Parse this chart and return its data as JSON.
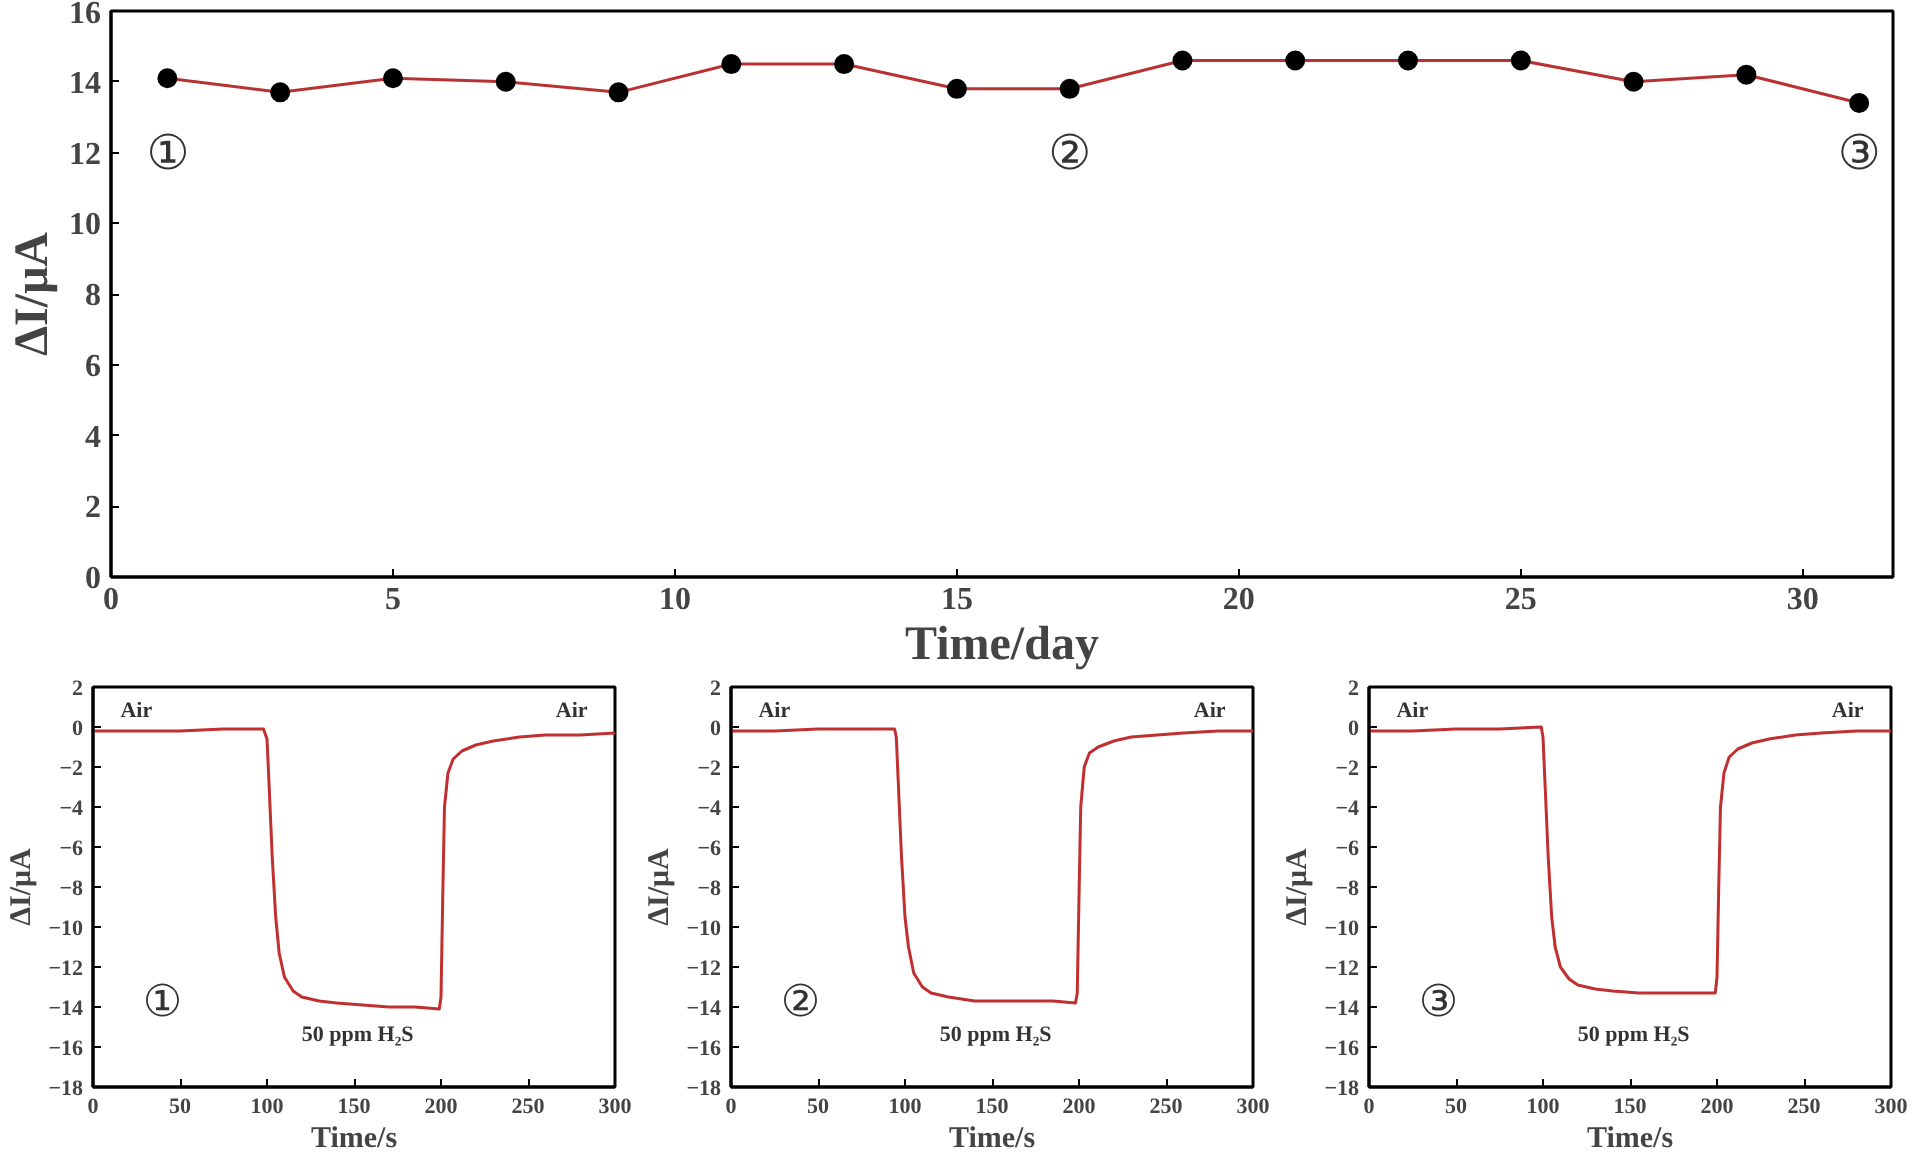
{
  "chart_data": [
    {
      "type": "line",
      "xlabel": "Time/day",
      "ylabel": "ΔI/μA",
      "x": [
        1,
        3,
        5,
        7,
        9,
        11,
        13,
        15,
        17,
        19,
        21,
        23,
        25,
        27,
        29,
        31
      ],
      "series": [
        {
          "color": "#b83232",
          "colors": [
            "#000000",
            "#000000",
            "#000000",
            "#000000",
            "#000000",
            "#000000",
            "#000000",
            "#000000",
            "#000000",
            "#000000",
            "#000000",
            "#000000",
            "#000000",
            "#000000",
            "#000000",
            "#000000"
          ],
          "values": [
            14.1,
            13.7,
            14.1,
            14.0,
            13.7,
            14.5,
            14.5,
            13.8,
            13.8,
            14.6,
            14.6,
            14.6,
            14.6,
            14.0,
            14.2,
            13.4
          ]
        }
      ],
      "marker": "circle",
      "grid": false,
      "xlim": [
        0,
        31.6
      ],
      "xticks": [
        0,
        5,
        10,
        15,
        20,
        25,
        30
      ],
      "ylim": [
        0,
        16
      ],
      "yticks": [
        0,
        2,
        4,
        6,
        8,
        10,
        12,
        14,
        16
      ],
      "annotations": [
        "①",
        "②",
        "③"
      ]
    },
    {
      "type": "line",
      "xlabel": "Time/s",
      "ylabel": "ΔI/μA",
      "x": [
        0,
        25,
        50,
        75,
        98,
        100,
        101,
        103,
        105,
        107,
        110,
        115,
        120,
        130,
        140,
        155,
        170,
        185,
        199,
        200,
        201,
        202,
        204,
        207,
        212,
        220,
        230,
        245,
        260,
        280,
        300
      ],
      "series": [
        {
          "color": "#c03030",
          "values": [
            -0.2,
            -0.2,
            -0.2,
            -0.1,
            -0.1,
            -0.6,
            -2.5,
            -6.5,
            -9.5,
            -11.3,
            -12.5,
            -13.2,
            -13.5,
            -13.7,
            -13.8,
            -13.9,
            -14.0,
            -14.0,
            -14.1,
            -13.5,
            -8.5,
            -4.0,
            -2.3,
            -1.6,
            -1.2,
            -0.9,
            -0.7,
            -0.5,
            -0.4,
            -0.4,
            -0.3
          ]
        }
      ],
      "marker": "none",
      "grid": false,
      "xlim": [
        0,
        300
      ],
      "xticks": [
        0,
        50,
        100,
        150,
        200,
        250,
        300
      ],
      "ylim": [
        -18,
        2
      ],
      "yticks": [
        2,
        0,
        -2,
        -4,
        -6,
        -8,
        -10,
        -12,
        -14,
        -16,
        -18
      ],
      "annotations": [
        "Air",
        "Air",
        "50 ppm H₂S",
        "①"
      ]
    },
    {
      "type": "line",
      "xlabel": "Time/s",
      "ylabel": "ΔI/μA",
      "x": [
        0,
        25,
        50,
        75,
        94,
        95,
        96,
        98,
        100,
        102,
        105,
        110,
        115,
        125,
        140,
        155,
        170,
        185,
        198,
        199,
        200,
        201,
        203,
        206,
        211,
        220,
        230,
        245,
        260,
        280,
        300
      ],
      "series": [
        {
          "color": "#c03030",
          "values": [
            -0.2,
            -0.2,
            -0.1,
            -0.1,
            -0.1,
            -0.5,
            -2.5,
            -6.5,
            -9.5,
            -11.0,
            -12.3,
            -13.0,
            -13.3,
            -13.5,
            -13.7,
            -13.7,
            -13.7,
            -13.7,
            -13.8,
            -13.3,
            -8.5,
            -4.0,
            -2.0,
            -1.3,
            -1.0,
            -0.7,
            -0.5,
            -0.4,
            -0.3,
            -0.2,
            -0.2
          ]
        }
      ],
      "marker": "none",
      "grid": false,
      "xlim": [
        0,
        300
      ],
      "xticks": [
        0,
        50,
        100,
        150,
        200,
        250,
        300
      ],
      "ylim": [
        -18,
        2
      ],
      "yticks": [
        2,
        0,
        -2,
        -4,
        -6,
        -8,
        -10,
        -12,
        -14,
        -16,
        -18
      ],
      "annotations": [
        "Air",
        "Air",
        "50 ppm H₂S",
        "②"
      ]
    },
    {
      "type": "line",
      "xlabel": "Time/s",
      "ylabel": "ΔI/μA",
      "x": [
        0,
        25,
        50,
        75,
        99,
        100,
        101,
        103,
        105,
        107,
        110,
        115,
        120,
        130,
        140,
        155,
        170,
        185,
        199,
        200,
        201,
        202,
        204,
        207,
        212,
        220,
        230,
        245,
        260,
        280,
        300
      ],
      "series": [
        {
          "color": "#c03030",
          "values": [
            -0.2,
            -0.2,
            -0.1,
            -0.1,
            0.0,
            -0.5,
            -2.5,
            -6.5,
            -9.5,
            -11.0,
            -12.0,
            -12.6,
            -12.9,
            -13.1,
            -13.2,
            -13.3,
            -13.3,
            -13.3,
            -13.3,
            -12.5,
            -8.0,
            -4.0,
            -2.3,
            -1.5,
            -1.1,
            -0.8,
            -0.6,
            -0.4,
            -0.3,
            -0.2,
            -0.2
          ]
        }
      ],
      "marker": "none",
      "grid": false,
      "xlim": [
        0,
        300
      ],
      "xticks": [
        0,
        50,
        100,
        150,
        200,
        250,
        300
      ],
      "ylim": [
        -18,
        2
      ],
      "yticks": [
        2,
        0,
        -2,
        -4,
        -6,
        -8,
        -10,
        -12,
        -14,
        -16,
        -18
      ],
      "annotations": [
        "Air",
        "Air",
        "50 ppm H₂S",
        "③"
      ]
    }
  ]
}
